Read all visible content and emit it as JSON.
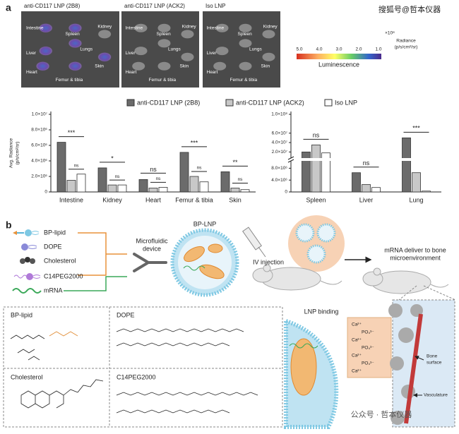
{
  "panel_a": {
    "label": "a",
    "watermark": "搜狐号@哲本仪器",
    "images": [
      {
        "title": "anti-CD117 LNP (2B8)",
        "organs": [
          "Intestine",
          "Spleen",
          "Kidney",
          "Lungs",
          "Liver",
          "Skin",
          "Heart",
          "Femur & tibia"
        ]
      },
      {
        "title": "anti-CD117 LNP (ACK2)",
        "organs": [
          "Intestine",
          "Spleen",
          "Kidney",
          "Lungs",
          "Liver",
          "Skin",
          "Heart",
          "Femur & tibia"
        ]
      },
      {
        "title": "Iso LNP",
        "organs": [
          "Intestine",
          "Spleen",
          "Kidney",
          "Lungs",
          "Liver",
          "Skin",
          "Heart",
          "Femur & tibia"
        ]
      }
    ],
    "colorbar": {
      "scale": "×10⁸",
      "ticks": [
        "5.0",
        "4.0",
        "3.0",
        "2.0",
        "1.0"
      ],
      "unit": "Radiance",
      "unit2": "(p/s/cm²/sr)",
      "title": "Luminescence"
    }
  },
  "chart_data": [
    {
      "type": "bar",
      "y_label": "Avg. Radiance",
      "y_label2": "(p/s/cm²/sr)",
      "categories": [
        "Intestine",
        "Kidney",
        "Heart",
        "Femur & tibia",
        "Skin"
      ],
      "series": [
        {
          "name": "anti-CD117 LNP (2B8)",
          "color": "#6b6b6b",
          "values": [
            6400000,
            3100000,
            1600000,
            5100000,
            2600000
          ]
        },
        {
          "name": "anti-CD117 LNP (ACK2)",
          "color": "#c8c8c8",
          "values": [
            1500000,
            900000,
            500000,
            2000000,
            500000
          ]
        },
        {
          "name": "Iso LNP",
          "color": "#ffffff",
          "values": [
            2300000,
            900000,
            600000,
            1300000,
            300000
          ]
        }
      ],
      "ylim": [
        0,
        10000000
      ],
      "yticks": [
        0,
        {
          "value": 2000000,
          "label": "2.0×10⁶"
        },
        {
          "value": 4000000,
          "label": "4.0×10⁶"
        },
        {
          "value": 6000000,
          "label": "6.0×10⁶"
        },
        {
          "value": 8000000,
          "label": "8.0×10⁶"
        },
        {
          "value": 10000000,
          "label": "1.0×10⁷"
        }
      ],
      "annotations": [
        [
          "***",
          "ns"
        ],
        [
          "*",
          "ns"
        ],
        [
          "ns",
          "ns"
        ],
        [
          "***",
          "ns"
        ],
        [
          "**",
          "ns"
        ]
      ]
    },
    {
      "type": "bar",
      "categories": [
        "Spleen",
        "Liver",
        "Lung"
      ],
      "series": [
        {
          "color": "#6b6b6b",
          "values": [
            20000000,
            6500000,
            50000000
          ]
        },
        {
          "color": "#c8c8c8",
          "values": [
            35000000,
            2500000,
            6500000
          ]
        },
        {
          "color": "#ffffff",
          "values": [
            18000000,
            1500000,
            300000
          ]
        }
      ],
      "ylim_lower": [
        0,
        10000000
      ],
      "ylim_upper": [
        10000000,
        100000000
      ],
      "yticks": [
        0,
        {
          "value": 4000000,
          "label": "4.0×10⁶"
        },
        {
          "value": 8000000,
          "label": "8.0×10⁶"
        },
        {
          "value": 20000000,
          "label": "2.0×10⁷"
        },
        {
          "value": 40000000,
          "label": "4.0×10⁷"
        },
        {
          "value": 60000000,
          "label": "6.0×10⁷"
        },
        {
          "value": 100000000,
          "label": "1.0×10⁸"
        }
      ],
      "annotations": [
        [
          "ns"
        ],
        [
          "ns"
        ],
        [
          "***"
        ]
      ]
    }
  ],
  "panel_b": {
    "label": "b",
    "components": [
      "BP-lipid",
      "DOPE",
      "Cholesterol",
      "C14PEG2000",
      "mRNA"
    ],
    "device": [
      "Microfluidic",
      "device"
    ],
    "lnp": "BP-LNP",
    "injection": "IV injection",
    "deliver": [
      "mRNA deliver to bone",
      "microenvironment"
    ],
    "structures": [
      "BP-lipid",
      "DOPE",
      "Cholesterol",
      "C14PEG2000"
    ],
    "binding": "LNP binding",
    "ions": [
      "Ca²⁺",
      "PO₄³⁻",
      "Ca²⁺",
      "PO₄³⁻",
      "Ca²⁺",
      "PO₄³⁻",
      "Ca²⁺"
    ],
    "bone": [
      "Bone",
      "surface"
    ],
    "vasculature": "Vasculature",
    "watermark": "公众号 · 哲本仪器"
  }
}
